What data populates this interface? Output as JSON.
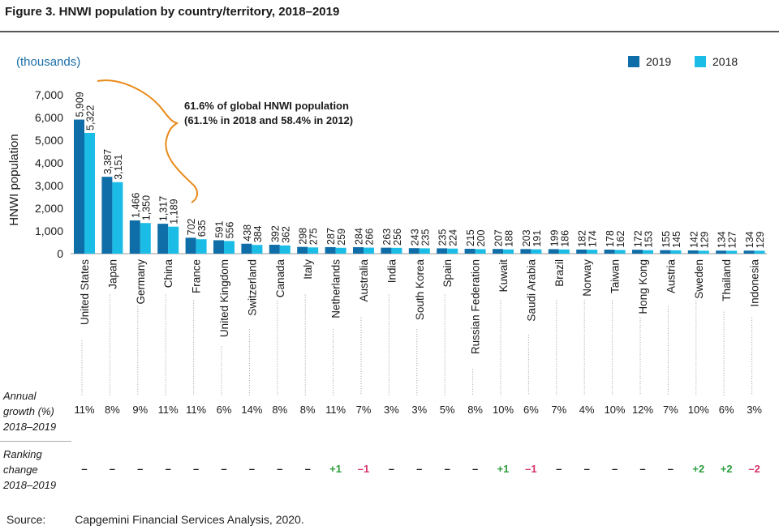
{
  "title": "Figure 3. HNWI population by country/territory, 2018–2019",
  "unit_label": "(thousands)",
  "annotation": {
    "line1": "61.6% of global HNWI population",
    "line2": "(61.1% in 2018 and 58.4% in 2012)"
  },
  "growth_label": [
    "Annual",
    "growth (%)",
    "2018–2019"
  ],
  "ranking_label": [
    "Ranking",
    "change",
    "2018–2019"
  ],
  "source_label": "Source:",
  "source_text": "Capgemini Financial Services Analysis, 2020.",
  "colors": {
    "y2019": "#0f6ea7",
    "y2018": "#1bbde6",
    "pos": "#2e9e3e",
    "neg": "#d6336c",
    "accent": "#e88a1a"
  },
  "chart_data": {
    "type": "bar",
    "title": "Figure 3. HNWI population by country/territory, 2018–2019",
    "ylabel": "HNWI population",
    "ylim": [
      0,
      7000
    ],
    "yticks": [
      "0",
      "1,000",
      "2,000",
      "3,000",
      "4,000",
      "5,000",
      "6,000",
      "7,000"
    ],
    "legend_position": "top-right",
    "categories": [
      "United States",
      "Japan",
      "Germany",
      "China",
      "France",
      "United Kingdom",
      "Switzerland",
      "Canada",
      "Italy",
      "Netherlands",
      "Australia",
      "India",
      "South Korea",
      "Spain",
      "Russian Federation",
      "Kuwait",
      "Saudi Arabia",
      "Brazil",
      "Norway",
      "Taiwan",
      "Hong Kong",
      "Austria",
      "Sweden",
      "Thailand",
      "Indonesia"
    ],
    "series": [
      {
        "name": "2019",
        "values": [
          5909,
          3387,
          1466,
          1317,
          702,
          591,
          438,
          392,
          298,
          287,
          284,
          263,
          243,
          235,
          215,
          207,
          203,
          199,
          182,
          178,
          172,
          155,
          142,
          134,
          134
        ],
        "labels": [
          "5,909",
          "3,387",
          "1,466",
          "1,317",
          "702",
          "591",
          "438",
          "392",
          "298",
          "287",
          "284",
          "263",
          "243",
          "235",
          "215",
          "207",
          "203",
          "199",
          "182",
          "178",
          "172",
          "155",
          "142",
          "134",
          "134"
        ]
      },
      {
        "name": "2018",
        "values": [
          5322,
          3151,
          1350,
          1189,
          635,
          556,
          384,
          362,
          275,
          259,
          266,
          256,
          235,
          224,
          200,
          188,
          191,
          186,
          174,
          162,
          153,
          145,
          129,
          127,
          129
        ],
        "labels": [
          "5,322",
          "3,151",
          "1,350",
          "1,189",
          "635",
          "556",
          "384",
          "362",
          "275",
          "259",
          "266",
          "256",
          "235",
          "224",
          "200",
          "188",
          "191",
          "186",
          "174",
          "162",
          "153",
          "145",
          "129",
          "127",
          "129"
        ]
      }
    ],
    "annual_growth": [
      "11%",
      "8%",
      "9%",
      "11%",
      "11%",
      "6%",
      "14%",
      "8%",
      "8%",
      "11%",
      "7%",
      "3%",
      "3%",
      "5%",
      "8%",
      "10%",
      "6%",
      "7%",
      "4%",
      "10%",
      "12%",
      "7%",
      "10%",
      "6%",
      "3%"
    ],
    "ranking_change": [
      "–",
      "–",
      "–",
      "–",
      "–",
      "–",
      "–",
      "–",
      "–",
      "+1",
      "–1",
      "–",
      "–",
      "–",
      "–",
      "+1",
      "–1",
      "–",
      "–",
      "–",
      "–",
      "–",
      "+2",
      "+2",
      "–2"
    ]
  }
}
